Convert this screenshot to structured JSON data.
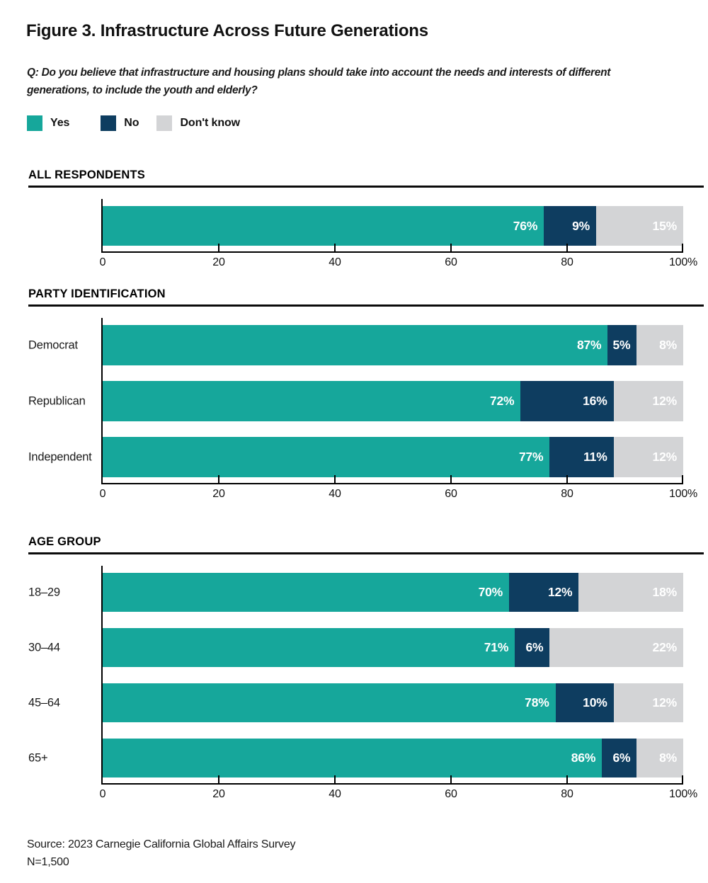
{
  "page": {
    "title": "Figure 3. Infrastructure Across Future Generations",
    "question_lines": [
      "Q: Do you believe that infrastructure and housing plans should take into account the needs and interests of different",
      "generations, to include the youth and elderly?"
    ],
    "source_line1": "Source: 2023 Carnegie California Global Affairs Survey",
    "source_line2": "N=1,500"
  },
  "legend": {
    "items": [
      {
        "label": "Yes",
        "color": "#16A79B"
      },
      {
        "label": "No",
        "color": "#0E3D60"
      },
      {
        "label": "Don't know",
        "color": "#D3D4D6"
      }
    ]
  },
  "colors": {
    "yes": "#16A79B",
    "no": "#0E3D60",
    "dont_know": "#D3D4D6",
    "axis": "#000000",
    "rule": "#0B0B0B"
  },
  "chart_data": [
    {
      "type": "bar",
      "stacked": true,
      "orientation": "horizontal",
      "section_title": "ALL RESPONDENTS",
      "categories": [
        ""
      ],
      "series": [
        {
          "name": "Yes",
          "color": "#16A79B",
          "values": [
            76
          ]
        },
        {
          "name": "No",
          "color": "#0E3D60",
          "values": [
            9
          ]
        },
        {
          "name": "Don't know",
          "color": "#D3D4D6",
          "values": [
            15
          ]
        }
      ],
      "value_suffix": "%",
      "xlim": [
        0,
        100
      ],
      "x_ticks": [
        0,
        20,
        40,
        60,
        80,
        100
      ],
      "x_tick_labels": [
        "0",
        "20",
        "40",
        "60",
        "80",
        "100%"
      ],
      "grid": false,
      "legend_position": "top"
    },
    {
      "type": "bar",
      "stacked": true,
      "orientation": "horizontal",
      "section_title": "PARTY IDENTIFICATION",
      "categories": [
        "Democrat",
        "Republican",
        "Independent"
      ],
      "series": [
        {
          "name": "Yes",
          "color": "#16A79B",
          "values": [
            87,
            72,
            77
          ]
        },
        {
          "name": "No",
          "color": "#0E3D60",
          "values": [
            5,
            16,
            11
          ]
        },
        {
          "name": "Don't know",
          "color": "#D3D4D6",
          "values": [
            8,
            12,
            12
          ]
        }
      ],
      "value_suffix": "%",
      "xlim": [
        0,
        100
      ],
      "x_ticks": [
        0,
        20,
        40,
        60,
        80,
        100
      ],
      "x_tick_labels": [
        "0",
        "20",
        "40",
        "60",
        "80",
        "100%"
      ],
      "grid": false,
      "legend_position": "top"
    },
    {
      "type": "bar",
      "stacked": true,
      "orientation": "horizontal",
      "section_title": "AGE GROUP",
      "categories": [
        "18–29",
        "30–44",
        "45–64",
        "65+"
      ],
      "series": [
        {
          "name": "Yes",
          "color": "#16A79B",
          "values": [
            70,
            71,
            78,
            86
          ]
        },
        {
          "name": "No",
          "color": "#0E3D60",
          "values": [
            12,
            6,
            10,
            6
          ]
        },
        {
          "name": "Don't know",
          "color": "#D3D4D6",
          "values": [
            18,
            22,
            12,
            8
          ]
        }
      ],
      "value_suffix": "%",
      "xlim": [
        0,
        100
      ],
      "x_ticks": [
        0,
        20,
        40,
        60,
        80,
        100
      ],
      "x_tick_labels": [
        "0",
        "20",
        "40",
        "60",
        "80",
        "100%"
      ],
      "grid": false,
      "legend_position": "top"
    }
  ]
}
